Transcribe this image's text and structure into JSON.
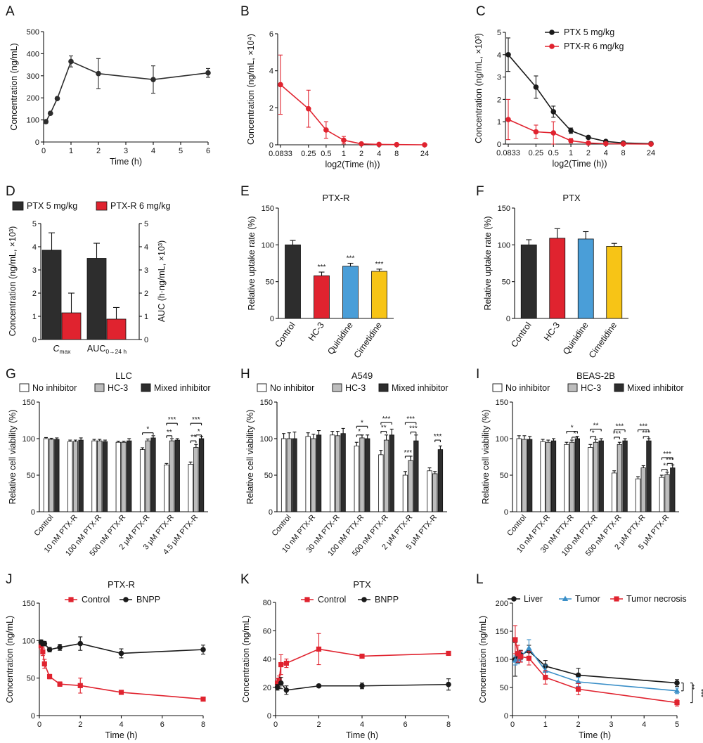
{
  "panels": [
    {
      "letter": "A"
    },
    {
      "letter": "B"
    },
    {
      "letter": "C"
    },
    {
      "letter": "D"
    },
    {
      "letter": "E"
    },
    {
      "letter": "F"
    },
    {
      "letter": "G"
    },
    {
      "letter": "H"
    },
    {
      "letter": "I"
    },
    {
      "letter": "J"
    },
    {
      "letter": "K"
    },
    {
      "letter": "L"
    }
  ],
  "colors": {
    "black": "#1a1a1a",
    "red": "#e0232f",
    "blue": "#4a9ed8",
    "yellow": "#f7c416",
    "gray": "#bdbdbd",
    "dark": "#2d2d2d",
    "teal": "#3a8fc8"
  },
  "chart_data": [
    {
      "panel": "A",
      "type": "line",
      "title": "",
      "xlabel": "Time (h)",
      "ylabel": "Concentration (ng/mL)",
      "xlim": [
        0,
        6
      ],
      "ylim": [
        0,
        500
      ],
      "xticks": [
        0,
        1,
        2,
        3,
        4,
        5,
        6
      ],
      "yticks": [
        0,
        100,
        200,
        300,
        400,
        500
      ],
      "series": [
        {
          "name": "",
          "x": [
            0.0833,
            0.25,
            0.5,
            1,
            2,
            4,
            6
          ],
          "values": [
            92,
            130,
            197,
            365,
            310,
            283,
            313
          ],
          "err": [
            8,
            6,
            6,
            25,
            68,
            62,
            20
          ]
        }
      ]
    },
    {
      "panel": "B",
      "type": "line",
      "title": "",
      "xlabel": "log2(Time (h))",
      "ylabel": "Concentration (ng/mL, ×10⁴)",
      "ylim": [
        0,
        6
      ],
      "xticks": [
        "0.0833",
        "0.25",
        "0.5",
        "1",
        "2",
        "4",
        "8",
        "24"
      ],
      "yticks": [
        0,
        2,
        4,
        6
      ],
      "series": [
        {
          "name": "",
          "x": [
            "0.0833",
            "0.25",
            "0.5",
            "1",
            "2",
            "4",
            "8",
            "24"
          ],
          "values": [
            3.25,
            1.95,
            0.8,
            0.25,
            0.05,
            0.02,
            0.01,
            0
          ],
          "err": [
            1.6,
            1.0,
            0.45,
            0.2,
            0.03,
            0.02,
            0.01,
            0
          ]
        }
      ]
    },
    {
      "panel": "C",
      "type": "line",
      "title": "",
      "xlabel": "log2(Time (h))",
      "ylabel": "Concentration (ng/mL, ×10³)",
      "ylim": [
        0,
        5
      ],
      "xticks": [
        "0.0833",
        "0.25",
        "0.5",
        "1",
        "2",
        "4",
        "8",
        "24"
      ],
      "yticks": [
        0,
        1,
        2,
        3,
        4,
        5
      ],
      "series": [
        {
          "name": "PTX 5 mg/kg",
          "x": [
            "0.0833",
            "0.25",
            "0.5",
            "1",
            "2",
            "4",
            "8",
            "24"
          ],
          "values": [
            4.0,
            2.55,
            1.45,
            0.6,
            0.3,
            0.12,
            0.05,
            0.02
          ],
          "err": [
            0.75,
            0.5,
            0.25,
            0.12,
            0.05,
            0.03,
            0.02,
            0.01
          ]
        },
        {
          "name": "PTX-R 6 mg/kg",
          "x": [
            "0.0833",
            "0.25",
            "0.5",
            "1",
            "2",
            "4",
            "8",
            "24"
          ],
          "values": [
            1.1,
            0.55,
            0.5,
            0.15,
            0.05,
            0.02,
            0.01,
            0
          ],
          "err": [
            0.9,
            0.3,
            0.5,
            0.1,
            0.03,
            0.01,
            0.01,
            0
          ]
        }
      ]
    },
    {
      "panel": "D",
      "type": "bar",
      "title": "",
      "ylabel": "Concentration (ng/mL, ×10³)",
      "y2label": "AUC (h·ng/mL, ×10³)",
      "categories": [
        "Cmax",
        "AUC0→24 h"
      ],
      "category_main": [
        "C",
        "AUC"
      ],
      "category_sub": [
        "max",
        "0→24 h"
      ],
      "ylim": [
        0,
        5
      ],
      "yticks": [
        0,
        1,
        2,
        3,
        4,
        5
      ],
      "series": [
        {
          "name": "PTX 5 mg/kg",
          "values": [
            3.85,
            3.5
          ],
          "err": [
            0.75,
            0.65
          ]
        },
        {
          "name": "PTX-R 6 mg/kg",
          "values": [
            1.15,
            0.88
          ],
          "err": [
            0.85,
            0.5
          ]
        }
      ]
    },
    {
      "panel": "E",
      "type": "bar",
      "title": "PTX-R",
      "ylabel": "Relative uptake rate (%)",
      "categories": [
        "Control",
        "HC-3",
        "Quinidine",
        "Cimetidine"
      ],
      "ylim": [
        0,
        150
      ],
      "yticks": [
        0,
        50,
        100,
        150
      ],
      "values": [
        100,
        58,
        71,
        64
      ],
      "err": [
        6,
        5,
        4,
        3
      ],
      "sig": [
        "",
        "***",
        "***",
        "***"
      ]
    },
    {
      "panel": "F",
      "type": "bar",
      "title": "PTX",
      "ylabel": "Relative uptake rate (%)",
      "categories": [
        "Control",
        "HC-3",
        "Quinidine",
        "Cimetidine"
      ],
      "ylim": [
        0,
        150
      ],
      "yticks": [
        0,
        50,
        100,
        150
      ],
      "values": [
        100,
        109,
        108,
        98
      ],
      "err": [
        7,
        13,
        10,
        4
      ]
    },
    {
      "panel": "G",
      "type": "bar",
      "title": "LLC",
      "ylabel": "Relative cell viability (%)",
      "categories": [
        "Control",
        "10 nM PTX-R",
        "100 nM PTX-R",
        "500 nM PTX-R",
        "2 μM PTX-R",
        "3 μM PTX-R",
        "4.5 μM PTX-R"
      ],
      "ylim": [
        0,
        150
      ],
      "yticks": [
        0,
        50,
        100,
        150
      ],
      "series": [
        {
          "name": "No inhibitor",
          "values": [
            100,
            96,
            97,
            95,
            85,
            64,
            65
          ],
          "err": [
            1.5,
            2,
            2,
            1.5,
            2.5,
            2,
            3
          ]
        },
        {
          "name": "HC-3",
          "values": [
            99,
            96,
            97,
            95,
            97,
            97,
            88
          ],
          "err": [
            1.5,
            2,
            2,
            1.5,
            2.5,
            3,
            4
          ]
        },
        {
          "name": "Mixed inhibitor",
          "values": [
            99,
            98,
            96,
            97,
            101,
            98,
            100
          ],
          "err": [
            2,
            3,
            2,
            3,
            3,
            2,
            3
          ]
        }
      ],
      "sig_labels": [
        "*",
        "**",
        "***",
        "**",
        "*",
        "***"
      ]
    },
    {
      "panel": "H",
      "type": "bar",
      "title": "A549",
      "ylabel": "Relative cell viability (%)",
      "categories": [
        "Control",
        "10 nM PTX-R",
        "30 nM PTX-R",
        "100 nM PTX-R",
        "500 nM PTX-R",
        "2 μM PTX-R",
        "5 μM PTX-R"
      ],
      "ylim": [
        0,
        150
      ],
      "yticks": [
        0,
        50,
        100,
        150
      ],
      "series": [
        {
          "name": "No inhibitor",
          "values": [
            100,
            103,
            105,
            90,
            78,
            50,
            56
          ],
          "err": [
            7,
            5,
            5,
            5,
            6,
            5,
            4
          ]
        },
        {
          "name": "HC-3",
          "values": [
            100,
            100,
            104,
            101,
            98,
            70,
            52
          ],
          "err": [
            8,
            6,
            6,
            4,
            7,
            6,
            3
          ]
        },
        {
          "name": "Mixed inhibitor",
          "values": [
            100,
            105,
            107,
            100,
            105,
            97,
            85
          ],
          "err": [
            9,
            6,
            7,
            5,
            8,
            8,
            5
          ]
        }
      ],
      "sig_labels": [
        "*",
        "*",
        "**",
        "***",
        "***",
        "***",
        "***",
        "***"
      ]
    },
    {
      "panel": "I",
      "type": "bar",
      "title": "BEAS-2B",
      "ylabel": "Relative cell viability (%)",
      "categories": [
        "Control",
        "10 nM PTX-R",
        "30 nM PTX-R",
        "100 nM PTX-R",
        "500 nM PTX-R",
        "2 μM PTX-R",
        "5 μM PTX-R"
      ],
      "ylim": [
        0,
        150
      ],
      "yticks": [
        0,
        50,
        100,
        150
      ],
      "series": [
        {
          "name": "No inhibitor",
          "values": [
            100,
            96,
            92,
            88,
            53,
            45,
            47
          ],
          "err": [
            4,
            3,
            3,
            4,
            3,
            3,
            3
          ]
        },
        {
          "name": "HC-3",
          "values": [
            99,
            95,
            95,
            95,
            92,
            60,
            51
          ],
          "err": [
            5,
            3,
            3,
            4,
            3,
            3,
            3
          ]
        },
        {
          "name": "Mixed inhibitor",
          "values": [
            99,
            97,
            100,
            97,
            97,
            97,
            60
          ],
          "err": [
            4,
            3,
            3,
            3,
            3,
            3,
            4
          ]
        }
      ],
      "sig_labels": [
        "*",
        "*",
        "**",
        "*",
        "***",
        "***",
        "***",
        "***",
        "*",
        "***",
        "***"
      ]
    },
    {
      "panel": "J",
      "type": "line",
      "title": "PTX-R",
      "xlabel": "Time (h)",
      "ylabel": "Concentration (ng/mL)",
      "xlim": [
        0,
        8
      ],
      "ylim": [
        0,
        150
      ],
      "xticks": [
        0,
        2,
        4,
        6,
        8
      ],
      "yticks": [
        0,
        50,
        100,
        150
      ],
      "series": [
        {
          "name": "Control",
          "x": [
            0.0833,
            0.1667,
            0.25,
            0.5,
            1,
            2,
            4,
            8
          ],
          "values": [
            93,
            85,
            69,
            52,
            42,
            40,
            31,
            22
          ],
          "err": [
            5,
            5,
            6,
            3,
            3,
            10,
            2,
            2
          ]
        },
        {
          "name": "BNPP",
          "x": [
            0.0833,
            0.1667,
            0.25,
            0.5,
            1,
            2,
            4,
            8
          ],
          "values": [
            98,
            96,
            96,
            88,
            91,
            96,
            83,
            88
          ],
          "err": [
            3,
            3,
            3,
            3,
            4,
            9,
            6,
            6
          ]
        }
      ]
    },
    {
      "panel": "K",
      "type": "line",
      "title": "PTX",
      "xlabel": "Time (h)",
      "ylabel": "Concentration (ng/mL)",
      "xlim": [
        0,
        8
      ],
      "ylim": [
        0,
        80
      ],
      "xticks": [
        0,
        2,
        4,
        6,
        8
      ],
      "yticks": [
        0,
        20,
        40,
        60,
        80
      ],
      "series": [
        {
          "name": "Control",
          "x": [
            0.0833,
            0.1667,
            0.25,
            0.5,
            2,
            4,
            8
          ],
          "values": [
            23,
            25,
            36,
            37,
            47,
            42,
            44
          ],
          "err": [
            3,
            3,
            7,
            3,
            11,
            1,
            1
          ]
        },
        {
          "name": "BNPP",
          "x": [
            0.0833,
            0.25,
            0.5,
            2,
            4,
            8
          ],
          "values": [
            20,
            23,
            18,
            21,
            21,
            22
          ],
          "err": [
            2,
            4,
            3,
            1,
            2,
            4
          ]
        }
      ]
    },
    {
      "panel": "L",
      "type": "line",
      "title": "",
      "xlabel": "Time (h)",
      "ylabel": "Concentration (ng/mL)",
      "xlim": [
        0,
        5
      ],
      "ylim": [
        0,
        200
      ],
      "xticks": [
        0,
        1,
        2,
        3,
        4,
        5
      ],
      "yticks": [
        0,
        50,
        100,
        150,
        200
      ],
      "series": [
        {
          "name": "Liver",
          "x": [
            0.0833,
            0.1667,
            0.25,
            0.5,
            1,
            2,
            5
          ],
          "values": [
            100,
            104,
            108,
            115,
            88,
            72,
            58
          ],
          "err": [
            30,
            10,
            8,
            10,
            10,
            12,
            6
          ]
        },
        {
          "name": "Tumor",
          "x": [
            0.0833,
            0.1667,
            0.25,
            0.5,
            1,
            2,
            5
          ],
          "values": [
            98,
            100,
            105,
            120,
            80,
            60,
            44
          ],
          "err": [
            8,
            8,
            8,
            15,
            10,
            8,
            5
          ]
        },
        {
          "name": "Tumor necrosis",
          "x": [
            0.0833,
            0.1667,
            0.25,
            0.5,
            1,
            2,
            5
          ],
          "values": [
            135,
            110,
            105,
            102,
            68,
            47,
            23
          ],
          "err": [
            25,
            15,
            10,
            12,
            12,
            10,
            6
          ]
        }
      ],
      "sig_labels": [
        "**",
        "***"
      ]
    }
  ]
}
